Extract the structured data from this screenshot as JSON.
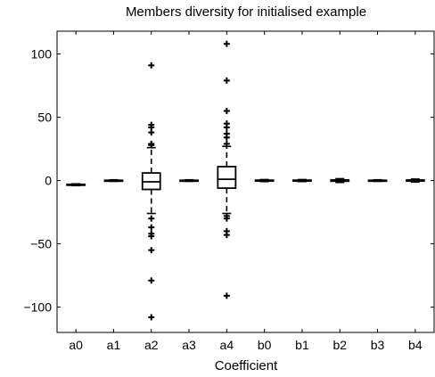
{
  "chart_data": {
    "type": "boxplot",
    "title": "Members diversity for initialised example",
    "xlabel": "Coefficient",
    "ylabel": "",
    "categories": [
      "a0",
      "a1",
      "a2",
      "a3",
      "a4",
      "b0",
      "b1",
      "b2",
      "b3",
      "b4"
    ],
    "ylim": [
      -120,
      118
    ],
    "yticks": [
      100,
      50,
      0,
      -50,
      -100
    ],
    "ytick_labels": [
      "100",
      "50",
      "0",
      "−50",
      "−100"
    ],
    "grid": false,
    "boxes": [
      {
        "category": "a0",
        "whisker_low": -4,
        "q1": -3.6,
        "median": -3.3,
        "q3": -3.0,
        "whisker_high": -2.6,
        "outliers": []
      },
      {
        "category": "a1",
        "whisker_low": -0.6,
        "q1": -0.2,
        "median": 0,
        "q3": 0.2,
        "whisker_high": 0.6,
        "outliers": []
      },
      {
        "category": "a2",
        "whisker_low": -26,
        "q1": -7,
        "median": -1,
        "q3": 6,
        "whisker_high": 26,
        "outliers": [
          91,
          44,
          42,
          38,
          29,
          28,
          -30,
          -37,
          -42,
          -44,
          -55,
          -79,
          -108
        ]
      },
      {
        "category": "a3",
        "whisker_low": -0.6,
        "q1": -0.2,
        "median": 0,
        "q3": 0.2,
        "whisker_high": 0.6,
        "outliers": []
      },
      {
        "category": "a4",
        "whisker_low": -26,
        "q1": -6,
        "median": 1,
        "q3": 11,
        "whisker_high": 27,
        "outliers": [
          108,
          79,
          55,
          45,
          42,
          37,
          34,
          29,
          -28,
          -30,
          -40,
          -43,
          -91
        ]
      },
      {
        "category": "b0",
        "whisker_low": -0.8,
        "q1": -0.3,
        "median": 0,
        "q3": 0.3,
        "whisker_high": 0.8,
        "outliers": []
      },
      {
        "category": "b1",
        "whisker_low": -0.8,
        "q1": -0.3,
        "median": 0,
        "q3": 0.3,
        "whisker_high": 0.8,
        "outliers": []
      },
      {
        "category": "b2",
        "whisker_low": -1.5,
        "q1": -0.5,
        "median": 0,
        "q3": 0.5,
        "whisker_high": 1.5,
        "outliers": []
      },
      {
        "category": "b3",
        "whisker_low": -0.6,
        "q1": -0.2,
        "median": 0,
        "q3": 0.2,
        "whisker_high": 0.6,
        "outliers": []
      },
      {
        "category": "b4",
        "whisker_low": -1.2,
        "q1": -0.4,
        "median": 0,
        "q3": 0.4,
        "whisker_high": 1.2,
        "outliers": []
      }
    ],
    "colors": {
      "stroke": "#000000",
      "background": "#ffffff"
    }
  }
}
